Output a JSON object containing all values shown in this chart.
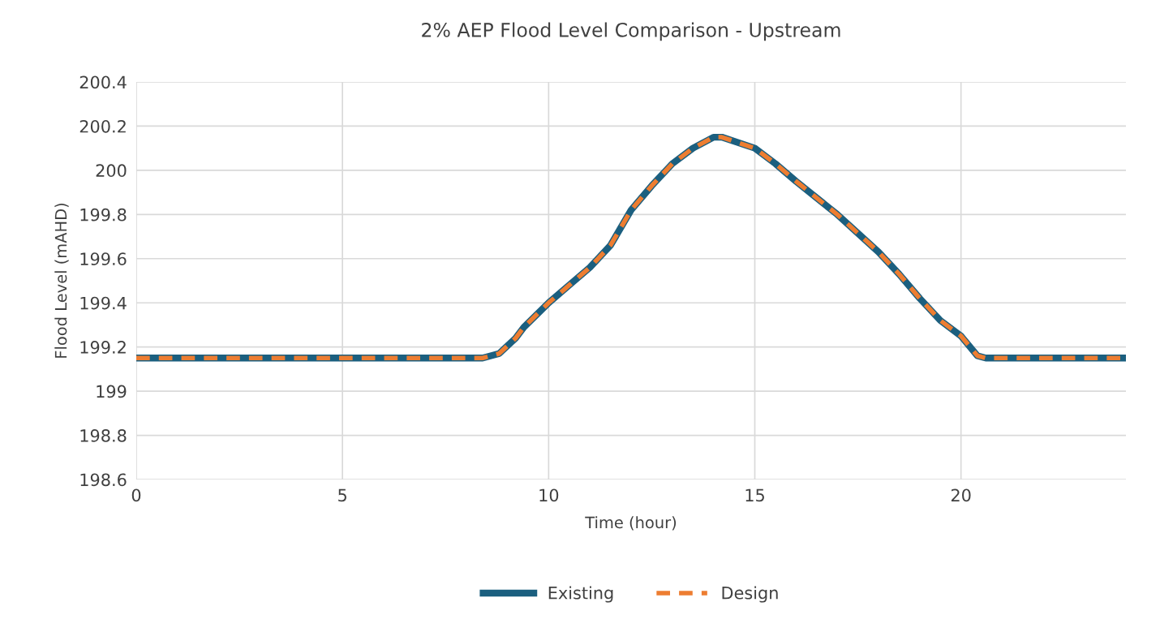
{
  "chart_data": {
    "type": "line",
    "title": "2% AEP Flood Level Comparison - Upstream",
    "xlabel": "Time (hour)",
    "ylabel": "Flood Level (mAHD)",
    "xlim": [
      0,
      24
    ],
    "xticks": [
      0,
      5,
      10,
      15,
      20
    ],
    "ylim": [
      198.6,
      200.4
    ],
    "yticks": [
      198.6,
      198.8,
      199,
      199.2,
      199.4,
      199.6,
      199.8,
      200,
      200.2,
      200.4
    ],
    "grid": true,
    "legend": "bottom",
    "marker": "none",
    "x": [
      0,
      8.4,
      8.8,
      9.2,
      9.4,
      10,
      10.5,
      11,
      11.5,
      12,
      12.5,
      13,
      13.5,
      14,
      14.2,
      15,
      15.5,
      16,
      17,
      18,
      18.5,
      19,
      19.5,
      20,
      20.4,
      20.6,
      24
    ],
    "series": [
      {
        "name": "Existing",
        "color": "#1b5f7f",
        "line_style": "solid",
        "values": [
          199.15,
          199.15,
          199.17,
          199.24,
          199.29,
          199.4,
          199.48,
          199.56,
          199.66,
          199.82,
          199.93,
          200.03,
          200.1,
          200.15,
          200.15,
          200.1,
          200.03,
          199.95,
          199.8,
          199.63,
          199.53,
          199.42,
          199.32,
          199.25,
          199.16,
          199.15,
          199.15
        ]
      },
      {
        "name": "Design",
        "color": "#ed7d31",
        "line_style": "dashed",
        "values": [
          199.15,
          199.15,
          199.17,
          199.24,
          199.29,
          199.4,
          199.48,
          199.56,
          199.66,
          199.82,
          199.93,
          200.03,
          200.1,
          200.15,
          200.15,
          200.1,
          200.03,
          199.95,
          199.8,
          199.63,
          199.53,
          199.42,
          199.32,
          199.25,
          199.16,
          199.15,
          199.15
        ]
      }
    ]
  }
}
